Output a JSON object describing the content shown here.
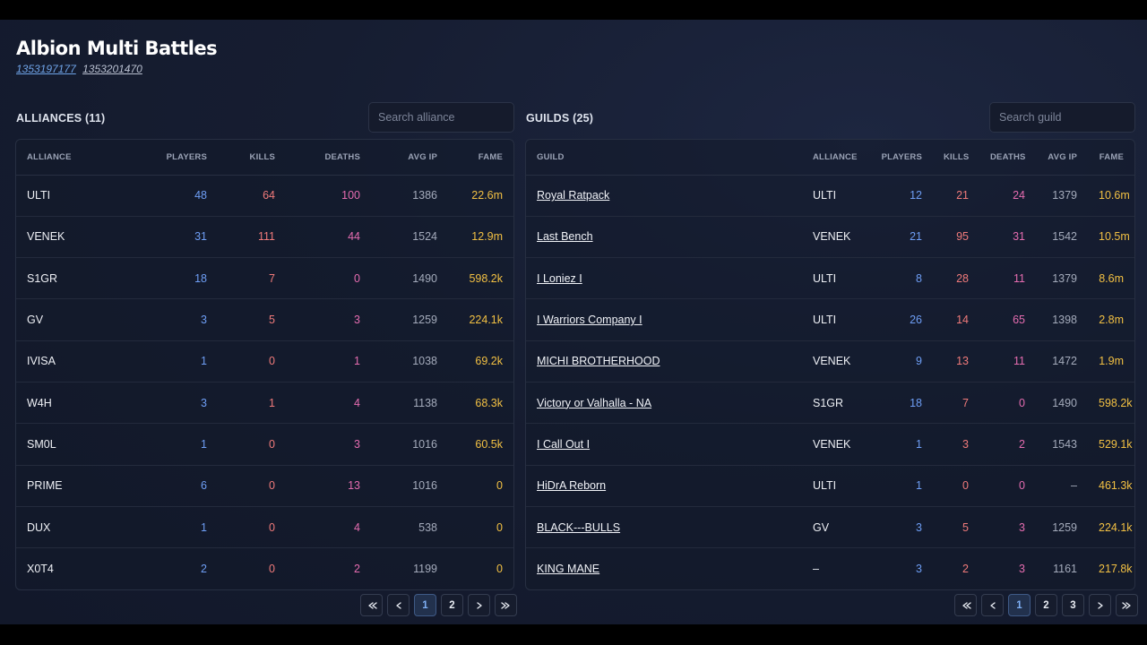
{
  "app": {
    "title": "Albion Multi Battles",
    "battle_ids": [
      "1353197177",
      "1353201470"
    ]
  },
  "colors": {
    "players": "#6e9ef5",
    "kills": "#f07a7a",
    "deaths": "#e56cb0",
    "fame": "#f2c043",
    "active_page": "#7fb0f5"
  },
  "alliances": {
    "title": "ALLIANCES (11)",
    "search_placeholder": "Search alliance",
    "columns": [
      "ALLIANCE",
      "PLAYERS",
      "KILLS",
      "DEATHS",
      "AVG IP",
      "FAME"
    ],
    "rows": [
      {
        "name": "ULTI",
        "players": "48",
        "kills": "64",
        "deaths": "100",
        "avg_ip": "1386",
        "fame": "22.6m"
      },
      {
        "name": "VENEK",
        "players": "31",
        "kills": "111",
        "deaths": "44",
        "avg_ip": "1524",
        "fame": "12.9m"
      },
      {
        "name": "S1GR",
        "players": "18",
        "kills": "7",
        "deaths": "0",
        "avg_ip": "1490",
        "fame": "598.2k"
      },
      {
        "name": "GV",
        "players": "3",
        "kills": "5",
        "deaths": "3",
        "avg_ip": "1259",
        "fame": "224.1k"
      },
      {
        "name": "IVISA",
        "players": "1",
        "kills": "0",
        "deaths": "1",
        "avg_ip": "1038",
        "fame": "69.2k"
      },
      {
        "name": "W4H",
        "players": "3",
        "kills": "1",
        "deaths": "4",
        "avg_ip": "1138",
        "fame": "68.3k"
      },
      {
        "name": "SM0L",
        "players": "1",
        "kills": "0",
        "deaths": "3",
        "avg_ip": "1016",
        "fame": "60.5k"
      },
      {
        "name": "PRIME",
        "players": "6",
        "kills": "0",
        "deaths": "13",
        "avg_ip": "1016",
        "fame": "0"
      },
      {
        "name": "DUX",
        "players": "1",
        "kills": "0",
        "deaths": "4",
        "avg_ip": "538",
        "fame": "0"
      },
      {
        "name": "X0T4",
        "players": "2",
        "kills": "0",
        "deaths": "2",
        "avg_ip": "1199",
        "fame": "0"
      }
    ],
    "pagination": {
      "pages": [
        "1",
        "2"
      ],
      "current": "1"
    }
  },
  "guilds": {
    "title": "GUILDS (25)",
    "search_placeholder": "Search guild",
    "columns": [
      "GUILD",
      "ALLIANCE",
      "PLAYERS",
      "KILLS",
      "DEATHS",
      "AVG IP",
      "FAME"
    ],
    "rows": [
      {
        "name": "Royal Ratpack",
        "alliance": "ULTI",
        "players": "12",
        "kills": "21",
        "deaths": "24",
        "avg_ip": "1379",
        "fame": "10.6m"
      },
      {
        "name": "Last Bench",
        "alliance": "VENEK",
        "players": "21",
        "kills": "95",
        "deaths": "31",
        "avg_ip": "1542",
        "fame": "10.5m"
      },
      {
        "name": "I Loniez I",
        "alliance": "ULTI",
        "players": "8",
        "kills": "28",
        "deaths": "11",
        "avg_ip": "1379",
        "fame": "8.6m"
      },
      {
        "name": "I Warriors Company I",
        "alliance": "ULTI",
        "players": "26",
        "kills": "14",
        "deaths": "65",
        "avg_ip": "1398",
        "fame": "2.8m"
      },
      {
        "name": "MICHI BROTHERHOOD",
        "alliance": "VENEK",
        "players": "9",
        "kills": "13",
        "deaths": "11",
        "avg_ip": "1472",
        "fame": "1.9m"
      },
      {
        "name": "Victory or Valhalla - NA",
        "alliance": "S1GR",
        "players": "18",
        "kills": "7",
        "deaths": "0",
        "avg_ip": "1490",
        "fame": "598.2k"
      },
      {
        "name": "I Call Out I",
        "alliance": "VENEK",
        "players": "1",
        "kills": "3",
        "deaths": "2",
        "avg_ip": "1543",
        "fame": "529.1k"
      },
      {
        "name": "HiDrA Reborn",
        "alliance": "ULTI",
        "players": "1",
        "kills": "0",
        "deaths": "0",
        "avg_ip": "–",
        "fame": "461.3k"
      },
      {
        "name": "BLACK---BULLS",
        "alliance": "GV",
        "players": "3",
        "kills": "5",
        "deaths": "3",
        "avg_ip": "1259",
        "fame": "224.1k"
      },
      {
        "name": "KING MANE",
        "alliance": "–",
        "players": "3",
        "kills": "2",
        "deaths": "3",
        "avg_ip": "1161",
        "fame": "217.8k"
      }
    ],
    "pagination": {
      "pages": [
        "1",
        "2",
        "3"
      ],
      "current": "1"
    }
  }
}
